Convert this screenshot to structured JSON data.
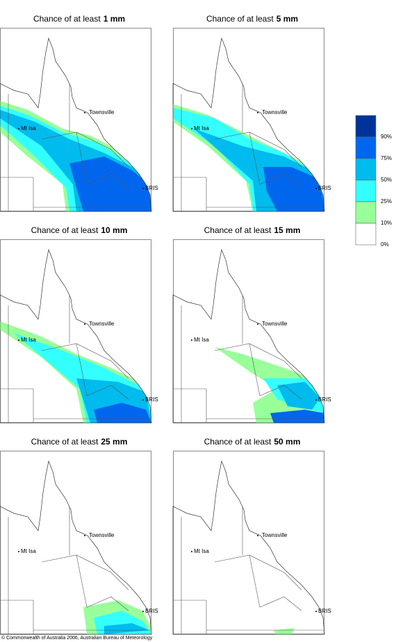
{
  "panels": [
    {
      "prefix": "Chance of at least",
      "amount": "1 mm"
    },
    {
      "prefix": "Chance of at least",
      "amount": "5 mm"
    },
    {
      "prefix": "Chance of at least",
      "amount": "10 mm"
    },
    {
      "prefix": "Chance of at least",
      "amount": "15 mm"
    },
    {
      "prefix": "Chance of at least",
      "amount": "25 mm"
    },
    {
      "prefix": "Chance of at least",
      "amount": "50 mm"
    }
  ],
  "places": [
    "Townsville",
    "Mt Isa",
    "BRIS"
  ],
  "legend": {
    "labels": [
      "90%",
      "75%",
      "50%",
      "25%",
      "10%",
      "0%"
    ],
    "colors": [
      "#00339a",
      "#0066ee",
      "#00bbee",
      "#33ffff",
      "#99ff99",
      "#ffffff"
    ]
  },
  "footer": "© Commonwealth of Australia 2006, Australian Bureau of Meteorology"
}
